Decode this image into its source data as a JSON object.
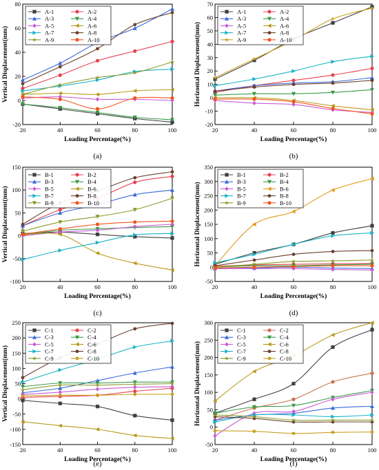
{
  "figure": {
    "panel_letters": [
      "(a)",
      "(b)",
      "(c)",
      "(d)",
      "(e)",
      "(f)"
    ]
  },
  "chart_data": [
    {
      "type": "line",
      "panel": "(a)",
      "xlabel": "Loading Percentage(%)",
      "ylabel": "Vertical Displacement(mm)",
      "x": [
        20,
        40,
        60,
        80,
        100
      ],
      "xlim": [
        20,
        100
      ],
      "xticks": [
        20,
        40,
        60,
        80,
        100
      ],
      "ylim": [
        -20,
        80
      ],
      "yticks": [
        -20,
        0,
        20,
        40,
        60,
        80
      ],
      "legend_position": "top-left",
      "legend_columns": 2,
      "series": [
        {
          "name": "A-1",
          "color": "#404040",
          "marker": "square",
          "values": [
            -3,
            -7,
            -11,
            -15,
            -18
          ]
        },
        {
          "name": "A-2",
          "color": "#e8434f",
          "marker": "circle",
          "values": [
            10,
            21,
            33,
            41,
            49
          ]
        },
        {
          "name": "A-3",
          "color": "#3a6ad8",
          "marker": "triangle-up",
          "values": [
            17,
            31,
            48,
            60,
            76
          ]
        },
        {
          "name": "A-4",
          "color": "#3a9a48",
          "marker": "triangle-down",
          "values": [
            -3,
            -6,
            -10,
            -14,
            -16
          ]
        },
        {
          "name": "A-5",
          "color": "#c85ad6",
          "marker": "diamond",
          "values": [
            2,
            3,
            1,
            1,
            0
          ]
        },
        {
          "name": "A-6",
          "color": "#b89a1a",
          "marker": "triangle-left",
          "values": [
            5,
            6,
            5,
            8,
            9
          ]
        },
        {
          "name": "A-7",
          "color": "#18b3c4",
          "marker": "triangle-right",
          "values": [
            8,
            12,
            17,
            24,
            26
          ]
        },
        {
          "name": "A-8",
          "color": "#6a3f2d",
          "marker": "hexagon",
          "values": [
            14,
            28,
            43,
            63,
            73
          ]
        },
        {
          "name": "A-9",
          "color": "#8a9a2a",
          "marker": "star",
          "values": [
            5,
            13,
            19,
            23,
            32
          ]
        },
        {
          "name": "A-10",
          "color": "#f2541d",
          "marker": "circle",
          "values": [
            3,
            1,
            -7,
            2,
            2
          ]
        }
      ]
    },
    {
      "type": "line",
      "panel": "(b)",
      "xlabel": "Loading Percentage(%)",
      "ylabel": "Horizontal Displacement(mm)",
      "x": [
        20,
        40,
        60,
        80,
        100
      ],
      "xlim": [
        20,
        100
      ],
      "xticks": [
        20,
        40,
        60,
        80,
        100
      ],
      "ylim": [
        -20,
        70
      ],
      "yticks": [
        -20,
        -10,
        0,
        10,
        20,
        30,
        40,
        50,
        60,
        70
      ],
      "legend_position": "top-left",
      "legend_columns": 2,
      "series": [
        {
          "name": "A-1",
          "color": "#404040",
          "marker": "square",
          "values": [
            14,
            28,
            44,
            56,
            68
          ]
        },
        {
          "name": "A-2",
          "color": "#e8434f",
          "marker": "circle",
          "values": [
            4,
            9,
            13,
            17,
            22
          ]
        },
        {
          "name": "A-3",
          "color": "#3a6ad8",
          "marker": "triangle-up",
          "values": [
            5,
            9,
            11,
            12,
            15
          ]
        },
        {
          "name": "A-4",
          "color": "#3a9a48",
          "marker": "triangle-down",
          "values": [
            2,
            3,
            3,
            4,
            6
          ]
        },
        {
          "name": "A-5",
          "color": "#c85ad6",
          "marker": "diamond",
          "values": [
            -2,
            -4,
            -5,
            -9,
            -11
          ]
        },
        {
          "name": "A-6",
          "color": "#b89a1a",
          "marker": "triangle-left",
          "values": [
            0,
            0,
            -2,
            -6,
            -9
          ]
        },
        {
          "name": "A-7",
          "color": "#18b3c4",
          "marker": "triangle-right",
          "values": [
            9,
            14,
            20,
            27,
            31
          ]
        },
        {
          "name": "A-8",
          "color": "#6a3f2d",
          "marker": "hexagon",
          "values": [
            5,
            8,
            10,
            11,
            13
          ]
        },
        {
          "name": "A-9",
          "color": "#c8a020",
          "marker": "star",
          "values": [
            15,
            29,
            43,
            59,
            67
          ]
        },
        {
          "name": "A-10",
          "color": "#f2541d",
          "marker": "circle",
          "values": [
            -1,
            -1,
            -3,
            -8,
            -12
          ]
        }
      ]
    },
    {
      "type": "line",
      "panel": "(c)",
      "xlabel": "Loading Percentage(%)",
      "ylabel": "Vertical Displacement(mm)",
      "x": [
        20,
        40,
        60,
        80,
        100
      ],
      "xlim": [
        20,
        100
      ],
      "xticks": [
        20,
        40,
        60,
        80,
        100
      ],
      "ylim": [
        -100,
        150
      ],
      "yticks": [
        -100,
        -50,
        0,
        50,
        100,
        150
      ],
      "legend_position": "top-left",
      "legend_columns": 2,
      "series": [
        {
          "name": "B-1",
          "color": "#404040",
          "marker": "square",
          "values": [
            5,
            8,
            3,
            -2,
            -5
          ]
        },
        {
          "name": "B-2",
          "color": "#e8434f",
          "marker": "circle",
          "values": [
            22,
            57,
            82,
            117,
            130
          ]
        },
        {
          "name": "B-3",
          "color": "#3a6ad8",
          "marker": "triangle-up",
          "values": [
            22,
            50,
            68,
            90,
            100
          ]
        },
        {
          "name": "B-4",
          "color": "#3a9a48",
          "marker": "triangle-down",
          "values": [
            2,
            12,
            15,
            18,
            20
          ]
        },
        {
          "name": "B-5",
          "color": "#c85ad6",
          "marker": "diamond",
          "values": [
            0,
            8,
            12,
            20,
            25
          ]
        },
        {
          "name": "B-6",
          "color": "#b89a1a",
          "marker": "triangle-left",
          "values": [
            2,
            3,
            -38,
            -60,
            -75
          ]
        },
        {
          "name": "B-7",
          "color": "#18b3c4",
          "marker": "triangle-right",
          "values": [
            -52,
            -32,
            -15,
            2,
            5
          ]
        },
        {
          "name": "B-8",
          "color": "#6a3f2d",
          "marker": "hexagon",
          "values": [
            25,
            72,
            98,
            127,
            140
          ]
        },
        {
          "name": "B-9",
          "color": "#8a9a2a",
          "marker": "triangle-down",
          "values": [
            10,
            30,
            42,
            57,
            82
          ]
        },
        {
          "name": "B-10",
          "color": "#f2541d",
          "marker": "circle",
          "values": [
            3,
            15,
            25,
            30,
            32
          ]
        }
      ]
    },
    {
      "type": "line",
      "panel": "(d)",
      "xlabel": "Loading Percentage(%)",
      "ylabel": "Horizontal Displacement(mm)",
      "x": [
        20,
        40,
        60,
        80,
        100
      ],
      "xlim": [
        20,
        100
      ],
      "xticks": [
        20,
        40,
        60,
        80,
        100
      ],
      "ylim": [
        -50,
        350
      ],
      "yticks": [
        -50,
        0,
        50,
        100,
        150,
        200,
        250,
        300,
        350
      ],
      "legend_position": "top-left",
      "legend_columns": 2,
      "series": [
        {
          "name": "B-1",
          "color": "#404040",
          "marker": "square",
          "values": [
            10,
            50,
            80,
            120,
            145
          ]
        },
        {
          "name": "B-2",
          "color": "#e8434f",
          "marker": "circle",
          "values": [
            3,
            8,
            10,
            12,
            13
          ]
        },
        {
          "name": "B-3",
          "color": "#3a6ad8",
          "marker": "triangle-up",
          "values": [
            -5,
            -3,
            0,
            -3,
            -5
          ]
        },
        {
          "name": "B-4",
          "color": "#3a9a48",
          "marker": "triangle-down",
          "values": [
            0,
            5,
            5,
            8,
            10
          ]
        },
        {
          "name": "B-5",
          "color": "#c85ad6",
          "marker": "diamond",
          "values": [
            -5,
            -5,
            -5,
            -8,
            -10
          ]
        },
        {
          "name": "B-6",
          "color": "#e09a1a",
          "marker": "triangle-left",
          "values": [
            5,
            150,
            195,
            270,
            310
          ]
        },
        {
          "name": "B-7",
          "color": "#18b3c4",
          "marker": "triangle-right",
          "values": [
            15,
            45,
            80,
            110,
            120
          ]
        },
        {
          "name": "B-8",
          "color": "#6a3f2d",
          "marker": "hexagon",
          "values": [
            5,
            25,
            45,
            55,
            58
          ]
        },
        {
          "name": "B-9",
          "color": "#8a9a2a",
          "marker": "star",
          "values": [
            0,
            10,
            20,
            22,
            25
          ]
        },
        {
          "name": "B-10",
          "color": "#f2541d",
          "marker": "circle",
          "values": [
            -3,
            0,
            2,
            5,
            5
          ]
        }
      ]
    },
    {
      "type": "line",
      "panel": "(e)",
      "xlabel": "Loading Percentage(%)",
      "ylabel": "Vertical Displacement(mm)",
      "x": [
        20,
        40,
        60,
        80,
        100
      ],
      "xlim": [
        20,
        100
      ],
      "xticks": [
        20,
        40,
        60,
        80,
        100
      ],
      "ylim": [
        -150,
        250
      ],
      "yticks": [
        -150,
        -100,
        -50,
        0,
        50,
        100,
        150,
        200,
        250
      ],
      "legend_position": "top-left",
      "legend_columns": 2,
      "series": [
        {
          "name": "C-1",
          "color": "#404040",
          "marker": "square",
          "values": [
            -5,
            -15,
            -25,
            -55,
            -70
          ]
        },
        {
          "name": "C-2",
          "color": "#e8434f",
          "marker": "circle",
          "values": [
            5,
            8,
            12,
            25,
            35
          ]
        },
        {
          "name": "C-3",
          "color": "#3a6ad8",
          "marker": "triangle-up",
          "values": [
            20,
            35,
            60,
            85,
            105
          ]
        },
        {
          "name": "C-4",
          "color": "#3a9a48",
          "marker": "triangle-down",
          "values": [
            40,
            52,
            52,
            55,
            55
          ]
        },
        {
          "name": "C-5",
          "color": "#c85ad6",
          "marker": "diamond",
          "values": [
            15,
            22,
            32,
            38,
            40
          ]
        },
        {
          "name": "C-6",
          "color": "#b89a1a",
          "marker": "triangle-left",
          "values": [
            -75,
            -88,
            -100,
            -120,
            -130
          ]
        },
        {
          "name": "C-7",
          "color": "#18b3c4",
          "marker": "triangle-right",
          "values": [
            55,
            95,
            130,
            170,
            190
          ]
        },
        {
          "name": "C-8",
          "color": "#6a3f2d",
          "marker": "hexagon",
          "values": [
            70,
            135,
            180,
            230,
            248
          ]
        },
        {
          "name": "C-9",
          "color": "#8a9a2a",
          "marker": "star",
          "values": [
            30,
            45,
            45,
            48,
            50
          ]
        },
        {
          "name": "C-10",
          "color": "#c8a020",
          "marker": "hexagon",
          "values": [
            10,
            12,
            12,
            15,
            15
          ]
        }
      ]
    },
    {
      "type": "line",
      "panel": "(f)",
      "xlabel": "Loading Percentage(%)",
      "ylabel": "Horizontal Displacement(mm)",
      "x": [
        20,
        40,
        60,
        80,
        100
      ],
      "xlim": [
        20,
        100
      ],
      "xticks": [
        20,
        40,
        60,
        80,
        100
      ],
      "ylim": [
        -50,
        300
      ],
      "yticks": [
        -50,
        0,
        50,
        100,
        150,
        200,
        250,
        300
      ],
      "legend_position": "top-left",
      "legend_columns": 2,
      "series": [
        {
          "name": "C-1",
          "color": "#404040",
          "marker": "square",
          "values": [
            40,
            80,
            125,
            230,
            280
          ]
        },
        {
          "name": "C-2",
          "color": "#c8734f",
          "marker": "circle",
          "values": [
            20,
            55,
            80,
            130,
            155
          ]
        },
        {
          "name": "C-3",
          "color": "#3a6ad8",
          "marker": "triangle-up",
          "values": [
            20,
            35,
            40,
            55,
            60
          ]
        },
        {
          "name": "C-4",
          "color": "#3a9a48",
          "marker": "triangle-down",
          "values": [
            40,
            58,
            62,
            85,
            105
          ]
        },
        {
          "name": "C-5",
          "color": "#c85ad6",
          "marker": "diamond",
          "values": [
            -25,
            40,
            45,
            80,
            100
          ]
        },
        {
          "name": "C-6",
          "color": "#b89a1a",
          "marker": "triangle-left",
          "values": [
            75,
            160,
            205,
            265,
            300
          ]
        },
        {
          "name": "C-7",
          "color": "#18b3c4",
          "marker": "triangle-right",
          "values": [
            15,
            35,
            35,
            30,
            35
          ]
        },
        {
          "name": "C-8",
          "color": "#6a3f2d",
          "marker": "hexagon",
          "values": [
            30,
            25,
            15,
            15,
            15
          ]
        },
        {
          "name": "C-9",
          "color": "#8a9a2a",
          "marker": "star",
          "values": [
            35,
            30,
            20,
            20,
            20
          ]
        },
        {
          "name": "C-10",
          "color": "#c8a020",
          "marker": "hexagon",
          "values": [
            -10,
            -12,
            -18,
            -15,
            -14
          ]
        }
      ]
    }
  ]
}
